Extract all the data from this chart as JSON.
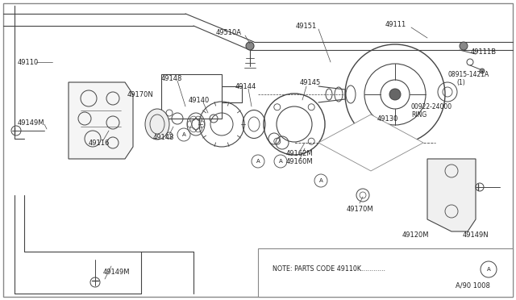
{
  "bg_color": "#ffffff",
  "line_color": "#444444",
  "text_color": "#222222",
  "fig_width": 6.4,
  "fig_height": 3.72,
  "dpi": 100,
  "note_text": "NOTE: PARTS CODE 49110K............",
  "note_circle": "A",
  "ref_text": "A/90 1008"
}
